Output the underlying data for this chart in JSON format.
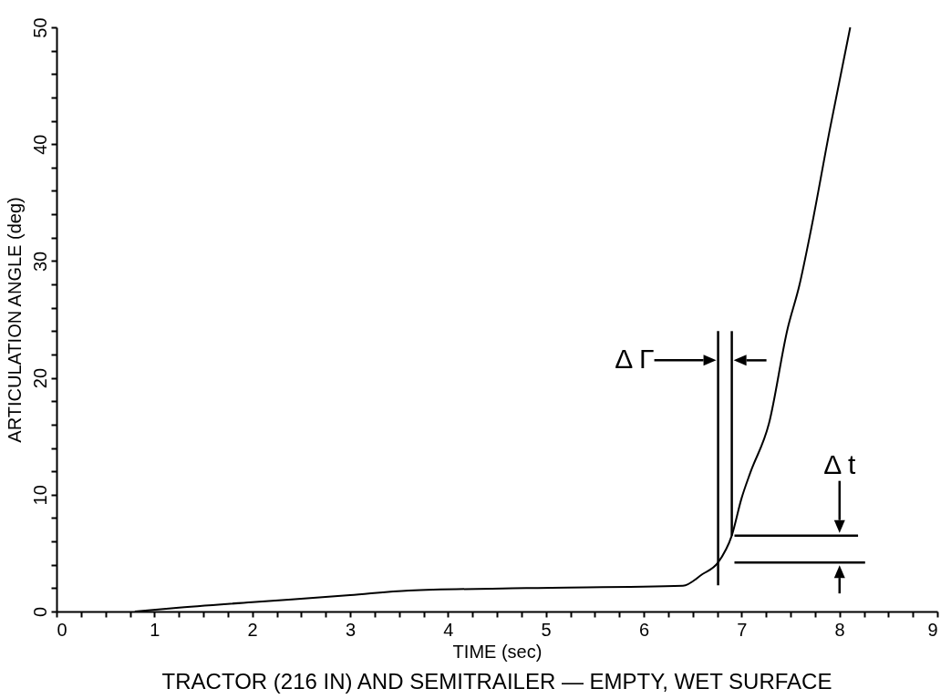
{
  "chart_data": {
    "type": "line",
    "title": "TRACTOR (216 IN) AND SEMITRAILER — EMPTY, WET SURFACE",
    "xlabel": "TIME (sec)",
    "ylabel": "ARTICULATION ANGLE (deg)",
    "x": [
      0.8,
      1.2,
      2,
      3,
      3.6,
      4.8,
      6.4,
      6.6,
      6.76,
      6.9,
      7.0,
      7.09,
      7.28,
      7.47,
      7.59,
      7.71,
      7.9,
      8.11
    ],
    "series": [
      {
        "color": "#000000",
        "values": [
          0,
          0.3,
          0.8,
          1.4,
          1.8,
          2.0,
          2.2,
          3.2,
          4.2,
          6.5,
          9.7,
          11.9,
          16.1,
          24.2,
          27.9,
          32.7,
          41.2,
          50
        ]
      }
    ],
    "xlim": [
      0,
      9
    ],
    "ylim": [
      0,
      50
    ],
    "xticks": [
      0,
      {
        "value": 0.25,
        "label": null
      },
      {
        "value": 0.5,
        "label": null
      },
      {
        "value": 0.75,
        "label": null
      },
      1,
      {
        "value": 1.25,
        "label": null
      },
      {
        "value": 1.5,
        "label": null
      },
      {
        "value": 1.75,
        "label": null
      },
      2,
      {
        "value": 2.25,
        "label": null
      },
      {
        "value": 2.5,
        "label": null
      },
      {
        "value": 2.75,
        "label": null
      },
      3,
      {
        "value": 3.25,
        "label": null
      },
      {
        "value": 3.5,
        "label": null
      },
      {
        "value": 3.75,
        "label": null
      },
      4,
      {
        "value": 4.25,
        "label": null
      },
      {
        "value": 4.5,
        "label": null
      },
      {
        "value": 4.75,
        "label": null
      },
      5,
      {
        "value": 5.25,
        "label": null
      },
      {
        "value": 5.5,
        "label": null
      },
      {
        "value": 5.75,
        "label": null
      },
      6,
      {
        "value": 6.25,
        "label": null
      },
      {
        "value": 6.5,
        "label": null
      },
      {
        "value": 6.75,
        "label": null
      },
      7,
      {
        "value": 7.25,
        "label": null
      },
      {
        "value": 7.5,
        "label": null
      },
      {
        "value": 7.75,
        "label": null
      },
      8,
      {
        "value": 8.25,
        "label": null
      },
      {
        "value": 8.5,
        "label": null
      },
      {
        "value": 8.75,
        "label": null
      },
      9
    ],
    "yticks": [
      0,
      {
        "value": 2,
        "label": null
      },
      {
        "value": 4,
        "label": null
      },
      {
        "value": 6,
        "label": null
      },
      {
        "value": 8,
        "label": null
      },
      10,
      {
        "value": 12,
        "label": null
      },
      {
        "value": 14,
        "label": null
      },
      {
        "value": 16,
        "label": null
      },
      {
        "value": 18,
        "label": null
      },
      20,
      {
        "value": 22,
        "label": null
      },
      {
        "value": 24,
        "label": null
      },
      {
        "value": 26,
        "label": null
      },
      {
        "value": 28,
        "label": null
      },
      30,
      {
        "value": 32,
        "label": null
      },
      {
        "value": 34,
        "label": null
      },
      {
        "value": 36,
        "label": null
      },
      {
        "value": 38,
        "label": null
      },
      40,
      {
        "value": 42,
        "label": null
      },
      {
        "value": 44,
        "label": null
      },
      {
        "value": 46,
        "label": null
      },
      {
        "value": 48,
        "label": null
      },
      50
    ],
    "ref_lines": [
      {
        "axis": "x",
        "value": 6.76
      },
      {
        "axis": "x",
        "value": 6.9
      },
      {
        "axis": "y",
        "value": 6.5
      },
      {
        "axis": "y",
        "value": 4.2
      }
    ],
    "annotations": [
      "Δ Γ",
      "Δ t"
    ],
    "grid": false,
    "marker": "none",
    "line_style": "solid"
  }
}
